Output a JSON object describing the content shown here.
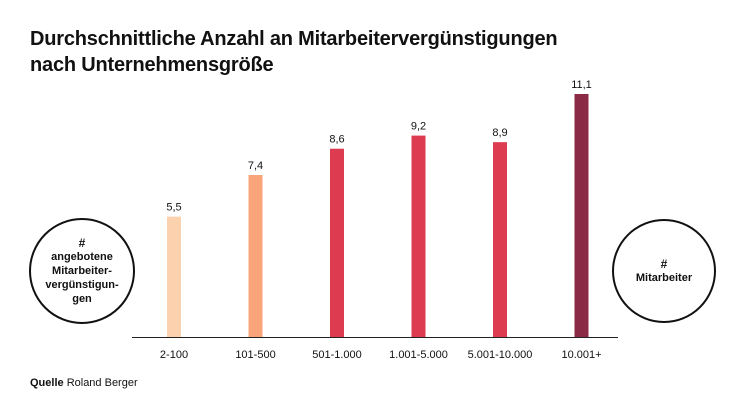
{
  "title_lines": [
    "Durchschnittliche Anzahl an Mitarbeitervergünstigungen",
    "nach Unternehmensgröße"
  ],
  "left_circle": {
    "hash": "#",
    "label": "angebotene\nMitarbeiter-\nvergünstigun-\ngen"
  },
  "right_circle": {
    "hash": "#",
    "label": "Mitarbeiter"
  },
  "source": {
    "prefix": "Quelle",
    "text": "Roland Berger"
  },
  "colors": [
    "#fcd1ad",
    "#f9a47a",
    "#dd3b4f",
    "#dd3b4f",
    "#dd3b4f",
    "#8b2a45"
  ],
  "chart_data": {
    "type": "bar",
    "title": "Durchschnittliche Anzahl an Mitarbeitervergünstigungen nach Unternehmensgröße",
    "xlabel": "Mitarbeiter",
    "ylabel": "angebotene Mitarbeitervergünstigungen",
    "categories": [
      "2-100",
      "101-500",
      "501-1.000",
      "1.001-5.000",
      "5.001-10.000",
      "10.001+"
    ],
    "values": [
      5.5,
      7.4,
      8.6,
      9.2,
      8.9,
      11.1
    ],
    "value_labels": [
      "5,5",
      "7,4",
      "8,6",
      "9,2",
      "8,9",
      "11,1"
    ],
    "ylim": [
      0,
      11.1
    ],
    "grid": false,
    "legend": "none"
  }
}
